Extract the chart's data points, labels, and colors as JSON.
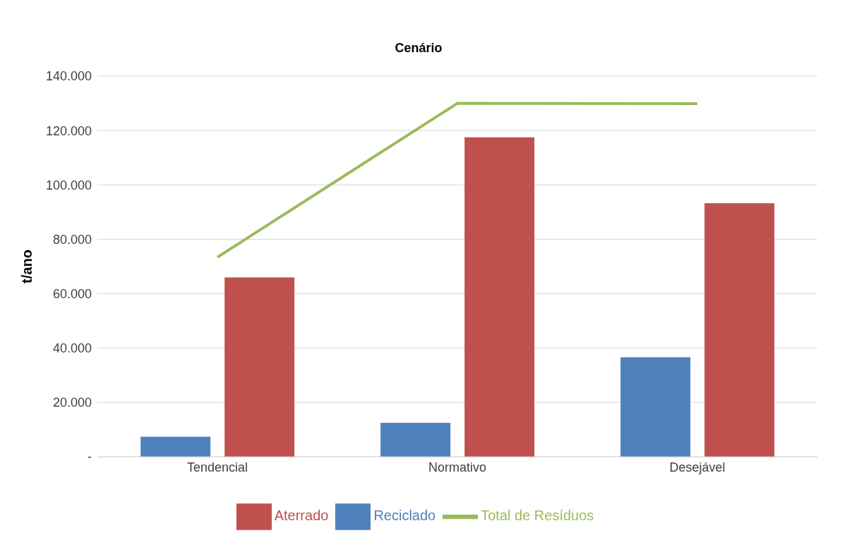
{
  "chart_data": {
    "type": "bar",
    "title": "Cenário",
    "ylabel": "t/ano",
    "categories": [
      "Tendencial",
      "Normativo",
      "Desejável"
    ],
    "series": [
      {
        "name": "Reciclado",
        "color": "#4f81bd",
        "values": [
          7400,
          12500,
          36600
        ]
      },
      {
        "name": "Aterrado",
        "color": "#c0504d",
        "values": [
          66000,
          117500,
          93300
        ]
      },
      {
        "name": "Total de Resíduos",
        "type": "line",
        "color": "#9bbb59",
        "values": [
          73400,
          130000,
          129900
        ]
      }
    ],
    "ylim": [
      0,
      140000
    ],
    "yticks": [
      {
        "value": 0,
        "label": "-"
      },
      {
        "value": 20000,
        "label": "20.000"
      },
      {
        "value": 40000,
        "label": "40.000"
      },
      {
        "value": 60000,
        "label": "60.000"
      },
      {
        "value": 80000,
        "label": "80.000"
      },
      {
        "value": 100000,
        "label": "100.000"
      },
      {
        "value": 120000,
        "label": "120.000"
      },
      {
        "value": 140000,
        "label": "140.000"
      }
    ],
    "grid": "y",
    "legend": "bottom",
    "marker": "none"
  }
}
